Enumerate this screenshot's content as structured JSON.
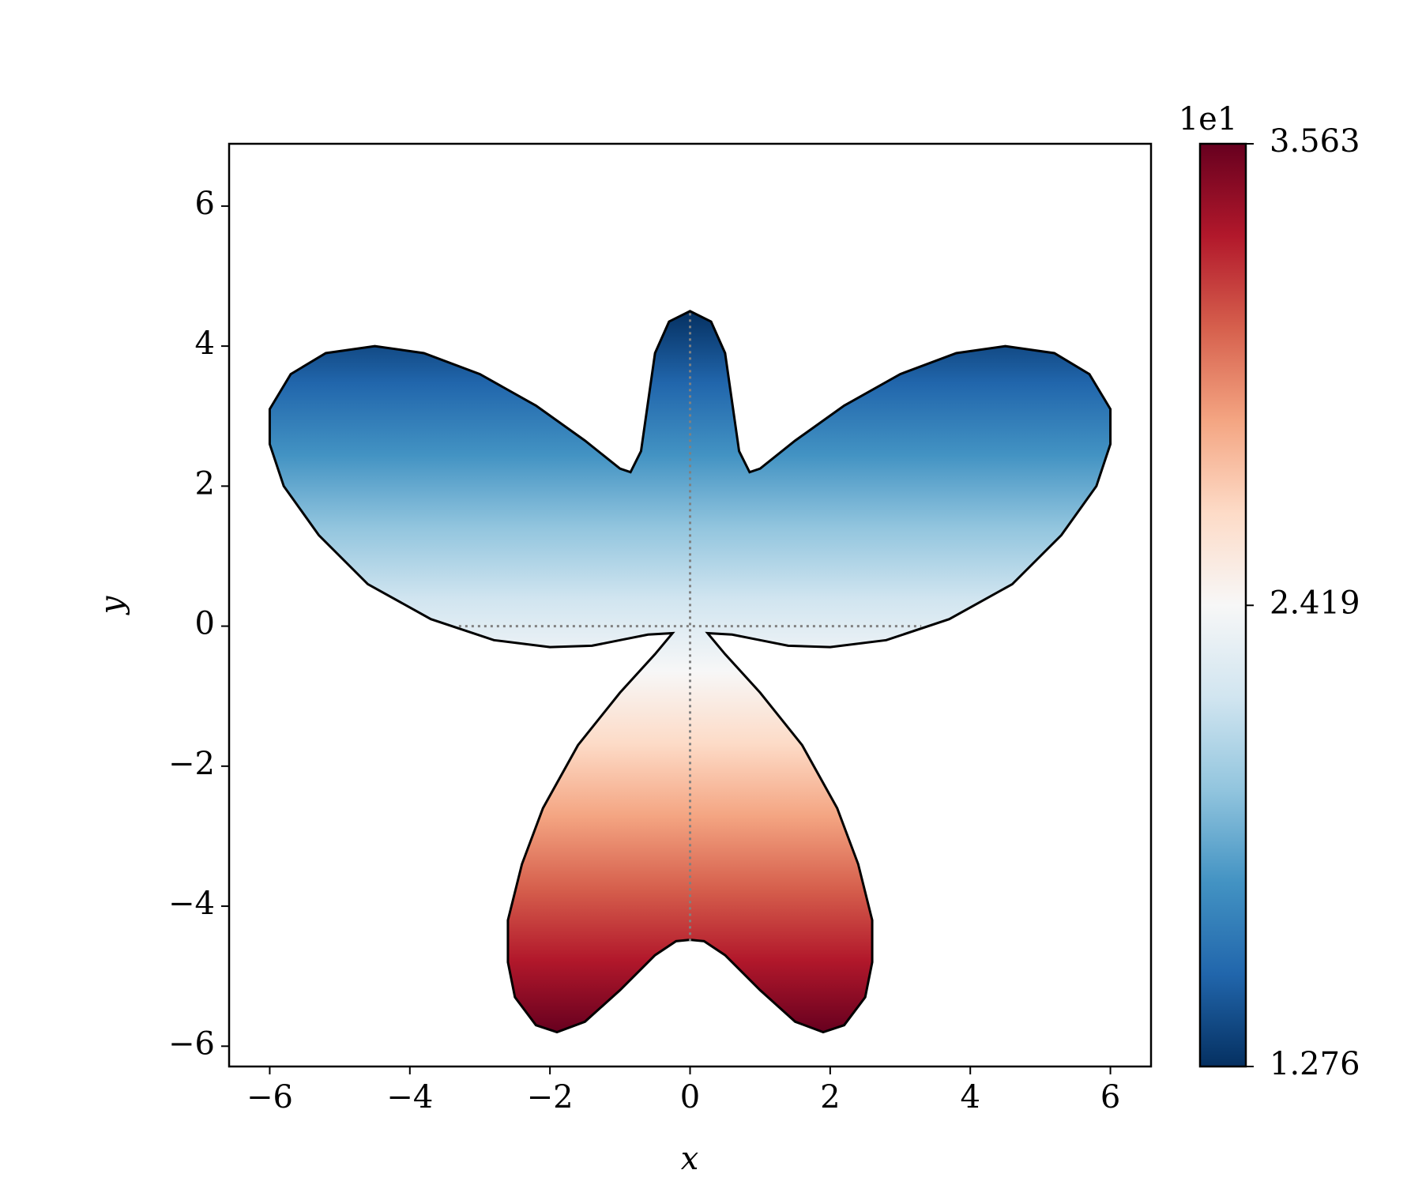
{
  "chart_data": {
    "type": "shape",
    "xlabel": "x",
    "ylabel": "y",
    "xlim": [
      -6.58,
      6.58
    ],
    "ylim": [
      -6.29,
      6.89
    ],
    "xticks": [
      {
        "value": -6,
        "label": "−6"
      },
      {
        "value": -4,
        "label": "−4"
      },
      {
        "value": -2,
        "label": "−2"
      },
      0,
      2,
      4,
      6
    ],
    "yticks": [
      {
        "value": -6,
        "label": "−6"
      },
      {
        "value": -4,
        "label": "−4"
      },
      {
        "value": -2,
        "label": "−2"
      },
      0,
      2,
      4,
      6
    ],
    "outline": {
      "x": [
        0,
        0.3,
        0.5,
        0.6,
        0.7,
        0.85,
        1.0,
        1.5,
        2.2,
        3.0,
        3.8,
        4.5,
        5.2,
        5.7,
        6.0,
        6.0,
        5.8,
        5.3,
        4.6,
        3.7,
        2.8,
        2.0,
        1.4,
        1.0,
        0.6,
        0.25,
        0.5,
        1.0,
        1.6,
        2.1,
        2.4,
        2.6,
        2.6,
        2.5,
        2.2,
        1.9,
        1.5,
        1.0,
        0.5,
        0.2,
        0,
        -0.2,
        -0.5,
        -1.0,
        -1.5,
        -1.9,
        -2.2,
        -2.5,
        -2.6,
        -2.6,
        -2.4,
        -2.1,
        -1.6,
        -1.0,
        -0.5,
        -0.25,
        -0.6,
        -1.0,
        -1.4,
        -2.0,
        -2.8,
        -3.7,
        -4.6,
        -5.3,
        -5.8,
        -6.0,
        -6.0,
        -5.7,
        -5.2,
        -4.5,
        -3.8,
        -3.0,
        -2.2,
        -1.5,
        -1.0,
        -0.85,
        -0.7,
        -0.6,
        -0.5,
        -0.3
      ],
      "y": [
        4.5,
        4.35,
        3.9,
        3.2,
        2.5,
        2.2,
        2.25,
        2.65,
        3.15,
        3.6,
        3.9,
        4.0,
        3.9,
        3.6,
        3.1,
        2.6,
        2.0,
        1.3,
        0.6,
        0.1,
        -0.2,
        -0.3,
        -0.28,
        -0.2,
        -0.12,
        -0.1,
        -0.4,
        -0.95,
        -1.7,
        -2.6,
        -3.4,
        -4.2,
        -4.8,
        -5.3,
        -5.7,
        -5.8,
        -5.65,
        -5.2,
        -4.7,
        -4.5,
        -4.48,
        -4.5,
        -4.7,
        -5.2,
        -5.65,
        -5.8,
        -5.7,
        -5.3,
        -4.8,
        -4.2,
        -3.4,
        -2.6,
        -1.7,
        -0.95,
        -0.4,
        -0.1,
        -0.12,
        -0.2,
        -0.28,
        -0.3,
        -0.2,
        0.1,
        0.6,
        1.3,
        2.0,
        2.6,
        3.1,
        3.6,
        3.9,
        4.0,
        3.9,
        3.6,
        3.15,
        2.65,
        2.25,
        2.2,
        2.5,
        3.2,
        3.9,
        4.35
      ]
    },
    "reference_lines": [
      {
        "x": [
          0,
          0
        ],
        "y": [
          -4.5,
          4.5
        ]
      },
      {
        "x": [
          -3.3,
          3.3
        ],
        "y": [
          0,
          0
        ]
      }
    ],
    "colormap": [
      "#053061",
      "#2166ac",
      "#4393c3",
      "#92c5de",
      "#d1e5f0",
      "#f7f7f7",
      "#fddbc7",
      "#f4a582",
      "#d6604d",
      "#b2182b",
      "#67001f"
    ],
    "colorbar": {
      "clim": [
        12.76,
        35.63
      ],
      "offset_label": "1e1",
      "ticks": [
        {
          "value": 12.76,
          "label": "1.276"
        },
        {
          "value": 24.19,
          "label": "2.419"
        },
        {
          "value": 35.63,
          "label": "3.563"
        }
      ]
    }
  }
}
